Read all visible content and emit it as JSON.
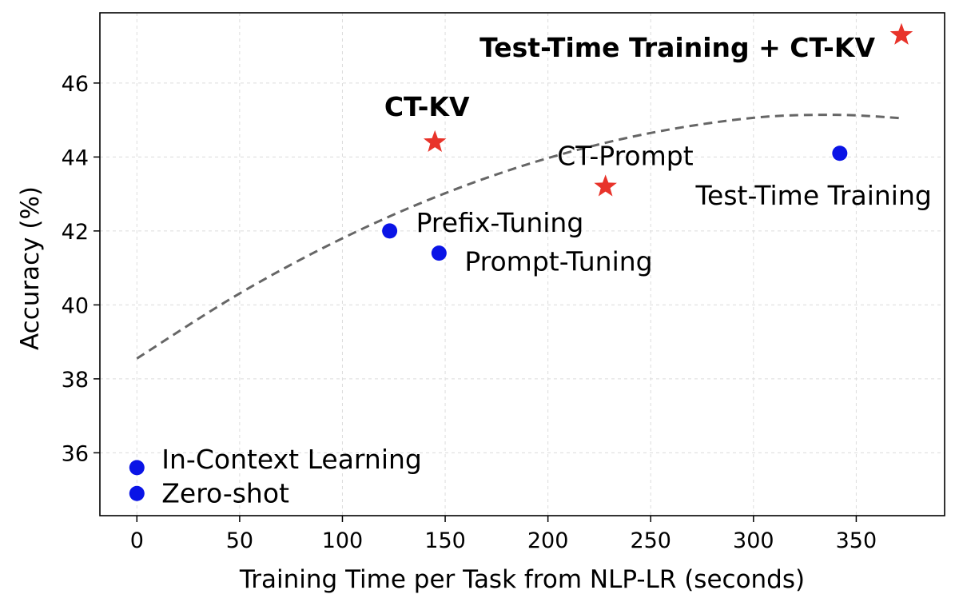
{
  "chart_data": {
    "type": "scatter",
    "xlabel": "Training Time per Task from NLP-LR (seconds)",
    "ylabel": "Accuracy (%)",
    "xlim": [
      -18,
      393
    ],
    "ylim": [
      34.3,
      47.9
    ],
    "xticks": [
      0,
      50,
      100,
      150,
      200,
      250,
      300,
      350
    ],
    "yticks": [
      36,
      38,
      40,
      42,
      44,
      46
    ],
    "grid": true,
    "colors": {
      "baseline": "#0a14e6",
      "proposed": "#e8332a",
      "trend": "#666666"
    },
    "points": [
      {
        "label": "Zero-shot",
        "x": 0,
        "y": 34.9,
        "marker": "circle",
        "group": "baseline",
        "bold": false
      },
      {
        "label": "In-Context Learning",
        "x": 0,
        "y": 35.6,
        "marker": "circle",
        "group": "baseline",
        "bold": false
      },
      {
        "label": "Prefix-Tuning",
        "x": 123,
        "y": 42.0,
        "marker": "circle",
        "group": "baseline",
        "bold": false
      },
      {
        "label": "Prompt-Tuning",
        "x": 147,
        "y": 41.4,
        "marker": "circle",
        "group": "baseline",
        "bold": false
      },
      {
        "label": "Test-Time Training",
        "x": 342,
        "y": 44.1,
        "marker": "circle",
        "group": "baseline",
        "bold": false
      },
      {
        "label": "CT-KV",
        "x": 145,
        "y": 44.4,
        "marker": "star",
        "group": "proposed",
        "bold": true
      },
      {
        "label": "CT-Prompt",
        "x": 228,
        "y": 43.2,
        "marker": "star",
        "group": "proposed",
        "bold": false
      },
      {
        "label": "Test-Time Training + CT-KV",
        "x": 372,
        "y": 47.3,
        "marker": "star",
        "group": "proposed",
        "bold": true
      }
    ],
    "trend_line": {
      "style": "dashed",
      "x": [
        0,
        50,
        100,
        150,
        200,
        250,
        300,
        340,
        372
      ],
      "y": [
        38.55,
        40.31,
        41.8,
        43.02,
        43.97,
        44.65,
        45.06,
        45.14,
        45.05
      ]
    }
  }
}
